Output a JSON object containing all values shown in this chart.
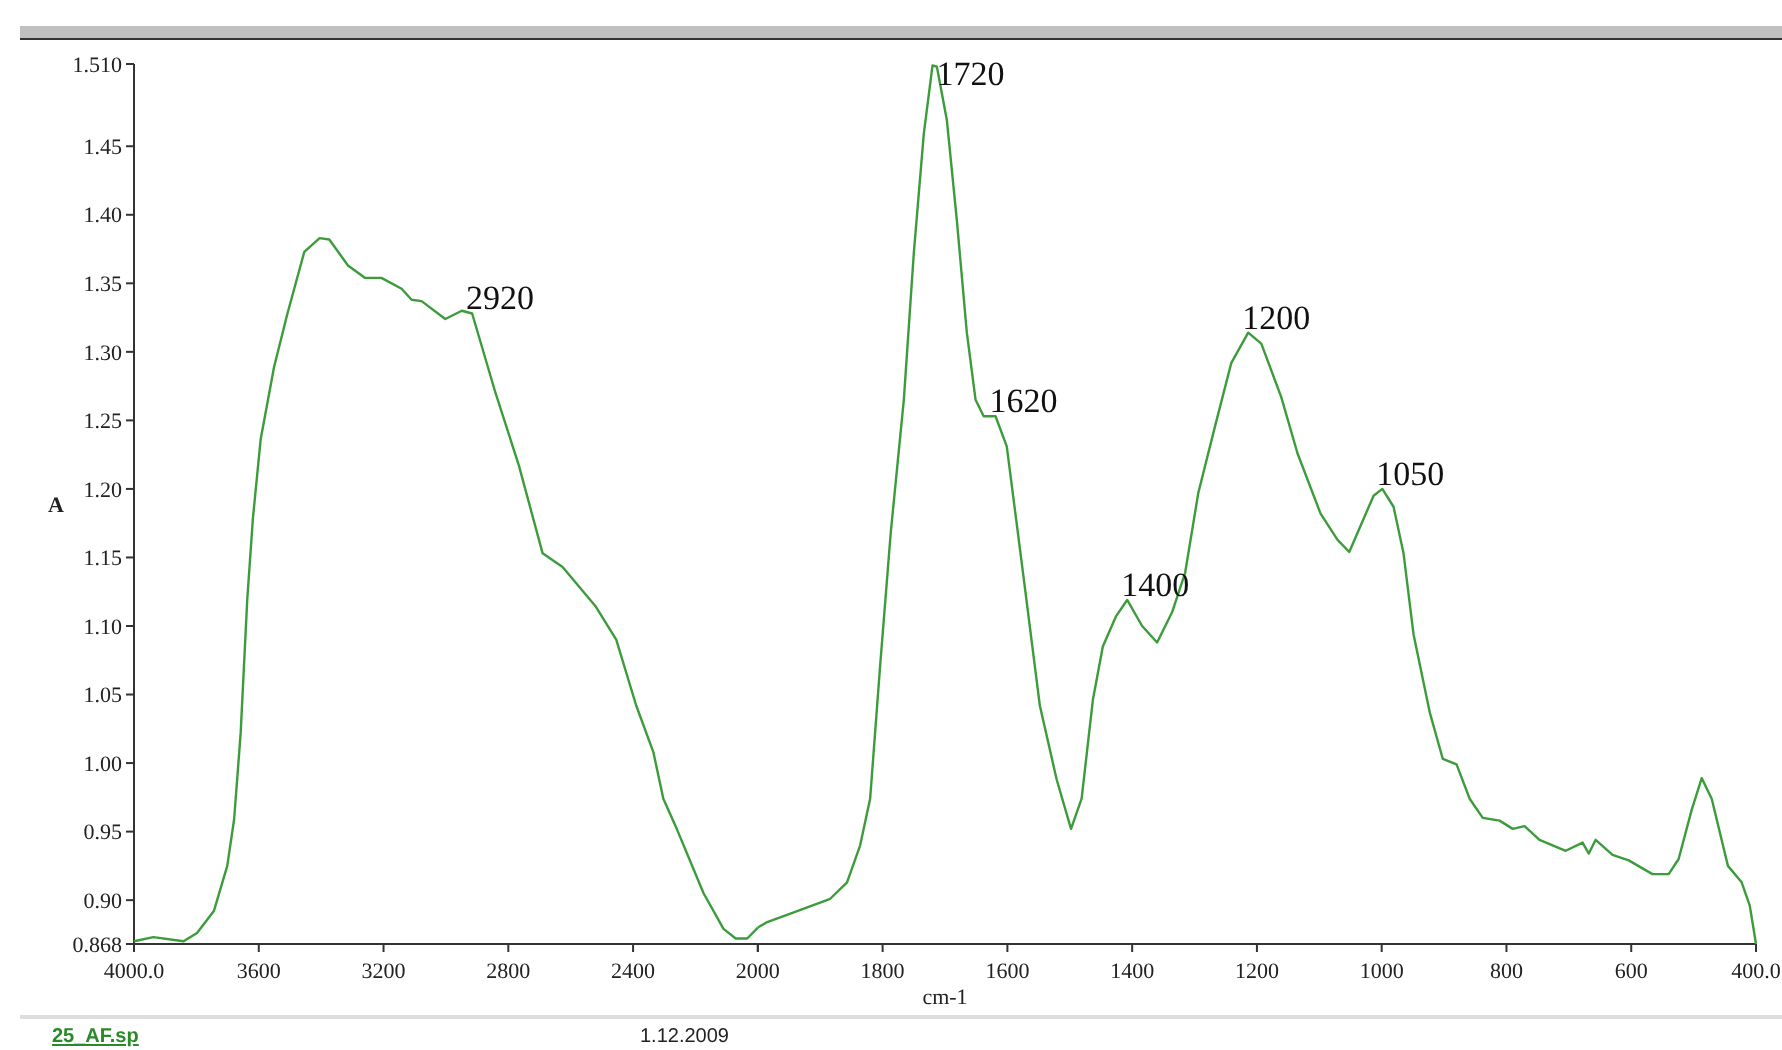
{
  "chart_data": [
    {
      "type": "line",
      "ylabel": "A",
      "xlim": [
        4000,
        2000
      ],
      "xticks": [
        {
          "value": 4000,
          "label": "4000.0"
        },
        3600,
        3200,
        2800,
        2400,
        {
          "value": 2000,
          "label": null
        }
      ],
      "ylim": [
        0.868,
        1.51
      ],
      "yticks": [
        {
          "value": 0.868,
          "label": "0.868"
        },
        {
          "value": 0.9,
          "label": "0.90"
        },
        {
          "value": 0.95,
          "label": "0.95"
        },
        {
          "value": 1.0,
          "label": "1.00"
        },
        {
          "value": 1.05,
          "label": "1.05"
        },
        {
          "value": 1.1,
          "label": "1.10"
        },
        {
          "value": 1.15,
          "label": "1.15"
        },
        {
          "value": 1.2,
          "label": "1.20"
        },
        {
          "value": 1.25,
          "label": "1.25"
        },
        {
          "value": 1.3,
          "label": "1.30"
        },
        {
          "value": 1.35,
          "label": "1.35"
        },
        {
          "value": 1.4,
          "label": "1.40"
        },
        {
          "value": 1.45,
          "label": "1.45"
        },
        {
          "value": 1.51,
          "label": "1.510"
        }
      ],
      "grid": false,
      "marker": "none",
      "line_style": "solid",
      "x": [
        4000,
        3938,
        3841,
        3798,
        3744,
        3701,
        3679,
        3658,
        3637,
        3619,
        3594,
        3551,
        3508,
        3454,
        3405,
        3374,
        3314,
        3260,
        3207,
        3142,
        3110,
        3078,
        3002,
        2949,
        2916,
        2841,
        2766,
        2690,
        2626,
        2519,
        2454,
        2390,
        2335,
        2303,
        2260,
        2174,
        2110,
        2071,
        2034,
        2000
      ],
      "series": [
        {
          "color": "#3c9c3c",
          "values": [
            0.87,
            0.873,
            0.87,
            0.876,
            0.892,
            0.925,
            0.959,
            1.022,
            1.119,
            1.178,
            1.236,
            1.289,
            1.328,
            1.373,
            1.383,
            1.382,
            1.363,
            1.354,
            1.354,
            1.346,
            1.338,
            1.337,
            1.324,
            1.33,
            1.328,
            1.27,
            1.217,
            1.153,
            1.143,
            1.114,
            1.09,
            1.042,
            1.008,
            0.974,
            0.952,
            0.905,
            0.879,
            0.872,
            0.872,
            0.88
          ]
        }
      ],
      "annotations": [
        {
          "text": "2920",
          "x": 2916,
          "y": 1.328
        },
        "25_AF.sp"
      ]
    },
    {
      "type": "line",
      "xlabel": "cm-1",
      "tick_labels": "x",
      "xlim": [
        2000,
        400
      ],
      "xticks": [
        2000,
        1800,
        1600,
        1400,
        1200,
        1000,
        800,
        600,
        {
          "value": 400,
          "label": "400.0"
        }
      ],
      "ylim": [
        0.868,
        1.51
      ],
      "grid": false,
      "marker": "none",
      "line_style": "solid",
      "x": [
        2000,
        1985,
        1937,
        1884,
        1857,
        1836,
        1820,
        1804,
        1787,
        1766,
        1750,
        1734,
        1720,
        1713,
        1697,
        1681,
        1665,
        1651,
        1638,
        1619,
        1601,
        1575,
        1548,
        1521,
        1498,
        1481,
        1463,
        1447,
        1426,
        1408,
        1384,
        1360,
        1336,
        1315,
        1294,
        1267,
        1241,
        1214,
        1193,
        1161,
        1135,
        1098,
        1071,
        1052,
        1034,
        1013,
        999,
        981,
        965,
        949,
        923,
        902,
        880,
        859,
        838,
        811,
        790,
        771,
        747,
        705,
        678,
        668,
        657,
        630,
        604,
        566,
        540,
        524,
        503,
        487,
        471,
        445,
        423,
        410,
        400
      ],
      "series": [
        {
          "color": "#3c9c3c",
          "values": [
            0.88,
            0.884,
            0.892,
            0.901,
            0.913,
            0.94,
            0.974,
            1.071,
            1.168,
            1.265,
            1.372,
            1.459,
            1.509,
            1.508,
            1.469,
            1.396,
            1.314,
            1.265,
            1.253,
            1.253,
            1.231,
            1.139,
            1.042,
            0.988,
            0.952,
            0.974,
            1.046,
            1.085,
            1.107,
            1.119,
            1.1,
            1.088,
            1.11,
            1.139,
            1.197,
            1.246,
            1.292,
            1.314,
            1.306,
            1.267,
            1.226,
            1.182,
            1.163,
            1.154,
            1.173,
            1.195,
            1.2,
            1.187,
            1.153,
            1.094,
            1.037,
            1.003,
            0.999,
            0.974,
            0.96,
            0.958,
            0.952,
            0.954,
            0.944,
            0.936,
            0.942,
            0.934,
            0.944,
            0.933,
            0.929,
            0.919,
            0.919,
            0.93,
            0.966,
            0.989,
            0.974,
            0.925,
            0.913,
            0.896,
            0.868
          ]
        }
      ],
      "annotations": [
        {
          "text": "1720",
          "x": 1720,
          "y": 1.509
        },
        {
          "text": "1620",
          "x": 1619,
          "y": 1.253
        },
        {
          "text": "1400",
          "x": 1408,
          "y": 1.119
        },
        {
          "text": "1200",
          "x": 1214,
          "y": 1.314
        },
        {
          "text": "1050",
          "x": 999,
          "y": 1.2
        },
        "1.12.2009"
      ]
    }
  ]
}
